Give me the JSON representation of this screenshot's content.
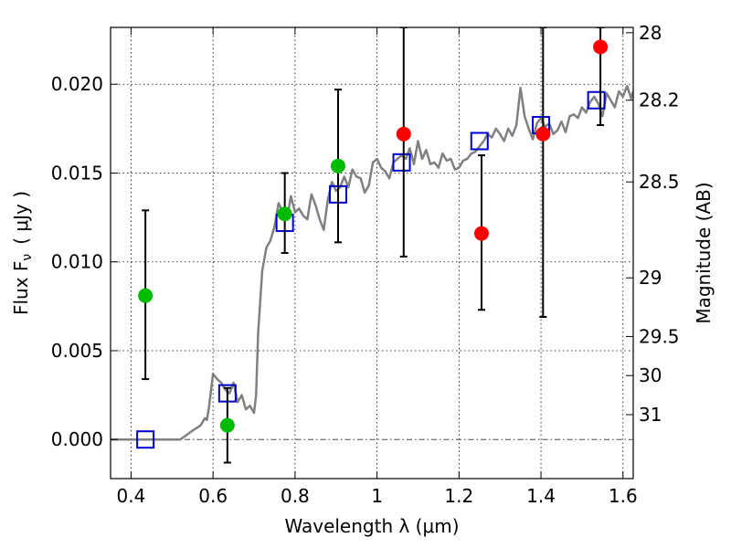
{
  "chart_data": {
    "type": "scatter",
    "xlabel": "Wavelength  λ (μm)",
    "ylabel": "Flux  F",
    "ylabel_sub": "ν",
    "ylabel_unit": "( μJy )",
    "y2label": "Magnitude (AB)",
    "xlim": [
      0.35,
      1.625
    ],
    "ylim": [
      -0.0022,
      0.0232
    ],
    "grid": true,
    "x_ticks": [
      0.4,
      0.6,
      0.8,
      1.0,
      1.2,
      1.4,
      1.6
    ],
    "x_tick_labels": [
      "0.4",
      "0.6",
      "0.8",
      "1",
      "1.2",
      "1.4",
      "1.6"
    ],
    "y_ticks": [
      0.0,
      0.005,
      0.01,
      0.015,
      0.02
    ],
    "y_tick_labels": [
      "0.000",
      "0.005",
      "0.010",
      "0.015",
      "0.020"
    ],
    "y2_ticks": [
      {
        "label": "28",
        "flux": 0.0229
      },
      {
        "label": "28.2",
        "flux": 0.0191
      },
      {
        "label": "28.5",
        "flux": 0.0145
      },
      {
        "label": "29",
        "flux": 0.0091
      },
      {
        "label": "29.5",
        "flux": 0.0058
      },
      {
        "label": "30",
        "flux": 0.0036
      },
      {
        "label": "31",
        "flux": 0.0014
      }
    ],
    "zero_line": 0.0,
    "colors": {
      "sed": "#808080",
      "model_boxes": "#0000cc",
      "green_points": "#00bb00",
      "red_points": "#ff0000",
      "errorbars": "#000000"
    },
    "sed_curve": [
      [
        0.35,
        0.0
      ],
      [
        0.52,
        0.0
      ],
      [
        0.55,
        0.0005
      ],
      [
        0.57,
        0.0008
      ],
      [
        0.58,
        0.0012
      ],
      [
        0.585,
        0.0011
      ],
      [
        0.59,
        0.0018
      ],
      [
        0.6,
        0.0037
      ],
      [
        0.61,
        0.0034
      ],
      [
        0.62,
        0.0032
      ],
      [
        0.63,
        0.0028
      ],
      [
        0.64,
        0.0026
      ],
      [
        0.65,
        0.0032
      ],
      [
        0.66,
        0.0021
      ],
      [
        0.67,
        0.0025
      ],
      [
        0.68,
        0.0017
      ],
      [
        0.69,
        0.0019
      ],
      [
        0.7,
        0.0015
      ],
      [
        0.705,
        0.0025
      ],
      [
        0.71,
        0.006
      ],
      [
        0.72,
        0.0095
      ],
      [
        0.73,
        0.0108
      ],
      [
        0.74,
        0.0112
      ],
      [
        0.75,
        0.012
      ],
      [
        0.76,
        0.0133
      ],
      [
        0.77,
        0.0128
      ],
      [
        0.78,
        0.0124
      ],
      [
        0.79,
        0.0137
      ],
      [
        0.8,
        0.0128
      ],
      [
        0.81,
        0.013
      ],
      [
        0.82,
        0.0126
      ],
      [
        0.83,
        0.0124
      ],
      [
        0.84,
        0.0138
      ],
      [
        0.85,
        0.0132
      ],
      [
        0.86,
        0.0124
      ],
      [
        0.87,
        0.0118
      ],
      [
        0.88,
        0.0135
      ],
      [
        0.89,
        0.0145
      ],
      [
        0.9,
        0.014
      ],
      [
        0.91,
        0.0142
      ],
      [
        0.92,
        0.0148
      ],
      [
        0.93,
        0.0142
      ],
      [
        0.94,
        0.0152
      ],
      [
        0.95,
        0.0148
      ],
      [
        0.96,
        0.0147
      ],
      [
        0.97,
        0.0139
      ],
      [
        0.98,
        0.0143
      ],
      [
        0.99,
        0.0156
      ],
      [
        1.0,
        0.0158
      ],
      [
        1.01,
        0.0153
      ],
      [
        1.02,
        0.0151
      ],
      [
        1.03,
        0.0147
      ],
      [
        1.04,
        0.0156
      ],
      [
        1.05,
        0.0158
      ],
      [
        1.06,
        0.016
      ],
      [
        1.07,
        0.0158
      ],
      [
        1.08,
        0.0164
      ],
      [
        1.09,
        0.0155
      ],
      [
        1.1,
        0.0168
      ],
      [
        1.11,
        0.0158
      ],
      [
        1.12,
        0.0163
      ],
      [
        1.13,
        0.0155
      ],
      [
        1.14,
        0.0156
      ],
      [
        1.15,
        0.0153
      ],
      [
        1.16,
        0.0161
      ],
      [
        1.17,
        0.0157
      ],
      [
        1.18,
        0.0158
      ],
      [
        1.19,
        0.0152
      ],
      [
        1.2,
        0.0153
      ],
      [
        1.21,
        0.0157
      ],
      [
        1.22,
        0.0158
      ],
      [
        1.23,
        0.0161
      ],
      [
        1.24,
        0.0162
      ],
      [
        1.25,
        0.0165
      ],
      [
        1.26,
        0.0168
      ],
      [
        1.27,
        0.0172
      ],
      [
        1.28,
        0.017
      ],
      [
        1.29,
        0.0175
      ],
      [
        1.3,
        0.0172
      ],
      [
        1.31,
        0.0168
      ],
      [
        1.32,
        0.0175
      ],
      [
        1.33,
        0.0171
      ],
      [
        1.34,
        0.0177
      ],
      [
        1.35,
        0.0198
      ],
      [
        1.36,
        0.0182
      ],
      [
        1.37,
        0.0175
      ],
      [
        1.38,
        0.0169
      ],
      [
        1.39,
        0.0178
      ],
      [
        1.4,
        0.0181
      ],
      [
        1.41,
        0.0176
      ],
      [
        1.42,
        0.0178
      ],
      [
        1.43,
        0.0172
      ],
      [
        1.44,
        0.0174
      ],
      [
        1.45,
        0.0179
      ],
      [
        1.46,
        0.0173
      ],
      [
        1.47,
        0.0182
      ],
      [
        1.48,
        0.0183
      ],
      [
        1.49,
        0.0181
      ],
      [
        1.5,
        0.0187
      ],
      [
        1.51,
        0.0184
      ],
      [
        1.52,
        0.019
      ],
      [
        1.53,
        0.0193
      ],
      [
        1.54,
        0.0189
      ],
      [
        1.55,
        0.0182
      ],
      [
        1.56,
        0.0195
      ],
      [
        1.57,
        0.0191
      ],
      [
        1.58,
        0.0187
      ],
      [
        1.59,
        0.0196
      ],
      [
        1.6,
        0.0193
      ],
      [
        1.61,
        0.0199
      ],
      [
        1.62,
        0.0192
      ],
      [
        1.625,
        0.0196
      ]
    ],
    "model_boxes": [
      {
        "x": 0.435,
        "y": 0.0
      },
      {
        "x": 0.635,
        "y": 0.0026
      },
      {
        "x": 0.775,
        "y": 0.0122
      },
      {
        "x": 0.905,
        "y": 0.0138
      },
      {
        "x": 1.06,
        "y": 0.0156
      },
      {
        "x": 1.25,
        "y": 0.0168
      },
      {
        "x": 1.4,
        "y": 0.0177
      },
      {
        "x": 1.535,
        "y": 0.0191
      }
    ],
    "green_points": [
      {
        "x": 0.435,
        "y": 0.0081,
        "ylo": 0.0034,
        "yhi": 0.0129
      },
      {
        "x": 0.635,
        "y": 0.0008,
        "ylo": -0.0013,
        "yhi": 0.0029
      },
      {
        "x": 0.775,
        "y": 0.0127,
        "ylo": 0.0105,
        "yhi": 0.015
      },
      {
        "x": 0.905,
        "y": 0.0154,
        "ylo": 0.0111,
        "yhi": 0.0197
      }
    ],
    "red_points": [
      {
        "x": 1.065,
        "y": 0.0172,
        "ylo": 0.0103,
        "yhi": 0.0232
      },
      {
        "x": 1.255,
        "y": 0.0116,
        "ylo": 0.0073,
        "yhi": 0.016
      },
      {
        "x": 1.405,
        "y": 0.0172,
        "ylo": 0.0069,
        "yhi": 0.0232
      },
      {
        "x": 1.545,
        "y": 0.0221,
        "ylo": 0.0177,
        "yhi": 0.0232
      }
    ]
  }
}
